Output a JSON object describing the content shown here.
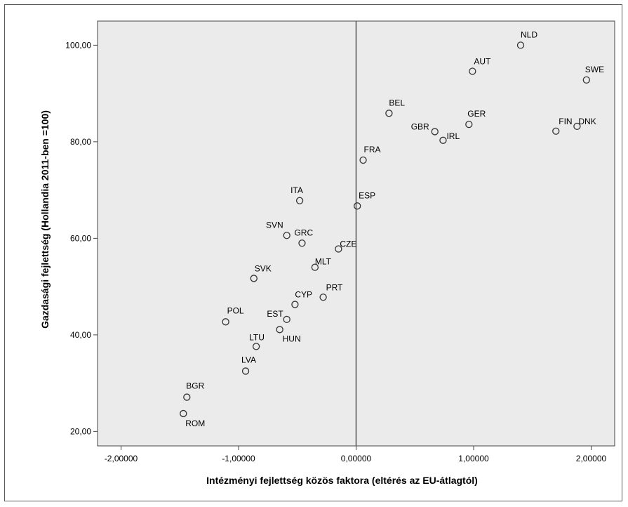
{
  "chart_data": {
    "type": "scatter",
    "xlabel": "Intézményi fejlettség közös faktora (eltérés az EU-átlagtól)",
    "ylabel": "Gazdasági fejlettség (Hollandia 2011-ben =100)",
    "xlim": [
      -2.2,
      2.2
    ],
    "ylim": [
      17,
      105
    ],
    "xticks": [
      -2,
      -1,
      0,
      1,
      2
    ],
    "xtick_labels": [
      "-2,00000",
      "-1,00000",
      "0,00000",
      "1,00000",
      "2,00000"
    ],
    "yticks": [
      20,
      40,
      60,
      80,
      100
    ],
    "ytick_labels": [
      "20,00",
      "40,00",
      "60,00",
      "80,00",
      "100,00"
    ],
    "reference_line_x": 0,
    "grid": false,
    "background_color": "#ebebeb",
    "marker_color": "#333333",
    "points": [
      {
        "label": "NLD",
        "x": 1.4,
        "y": 100.0
      },
      {
        "label": "AUT",
        "x": 0.99,
        "y": 94.6
      },
      {
        "label": "SWE",
        "x": 1.96,
        "y": 92.8
      },
      {
        "label": "BEL",
        "x": 0.28,
        "y": 85.9
      },
      {
        "label": "GBR",
        "x": 0.67,
        "y": 82.1
      },
      {
        "label": "IRL",
        "x": 0.74,
        "y": 80.3
      },
      {
        "label": "GER",
        "x": 0.96,
        "y": 83.6
      },
      {
        "label": "FIN",
        "x": 1.7,
        "y": 82.2
      },
      {
        "label": "DNK",
        "x": 1.88,
        "y": 83.2
      },
      {
        "label": "FRA",
        "x": 0.06,
        "y": 76.2
      },
      {
        "label": "ITA",
        "x": -0.48,
        "y": 67.8
      },
      {
        "label": "ESP",
        "x": 0.01,
        "y": 66.7
      },
      {
        "label": "SVN",
        "x": -0.59,
        "y": 60.6
      },
      {
        "label": "GRC",
        "x": -0.46,
        "y": 59.0
      },
      {
        "label": "CZE",
        "x": -0.15,
        "y": 57.8
      },
      {
        "label": "MLT",
        "x": -0.35,
        "y": 54.0
      },
      {
        "label": "SVK",
        "x": -0.87,
        "y": 51.7
      },
      {
        "label": "PRT",
        "x": -0.28,
        "y": 47.8
      },
      {
        "label": "CYP",
        "x": -0.52,
        "y": 46.3
      },
      {
        "label": "EST",
        "x": -0.59,
        "y": 43.2
      },
      {
        "label": "POL",
        "x": -1.11,
        "y": 42.7
      },
      {
        "label": "HUN",
        "x": -0.65,
        "y": 41.1
      },
      {
        "label": "LTU",
        "x": -0.85,
        "y": 37.6
      },
      {
        "label": "LVA",
        "x": -0.94,
        "y": 32.5
      },
      {
        "label": "BGR",
        "x": -1.44,
        "y": 27.1
      },
      {
        "label": "ROM",
        "x": -1.47,
        "y": 23.7
      }
    ]
  }
}
